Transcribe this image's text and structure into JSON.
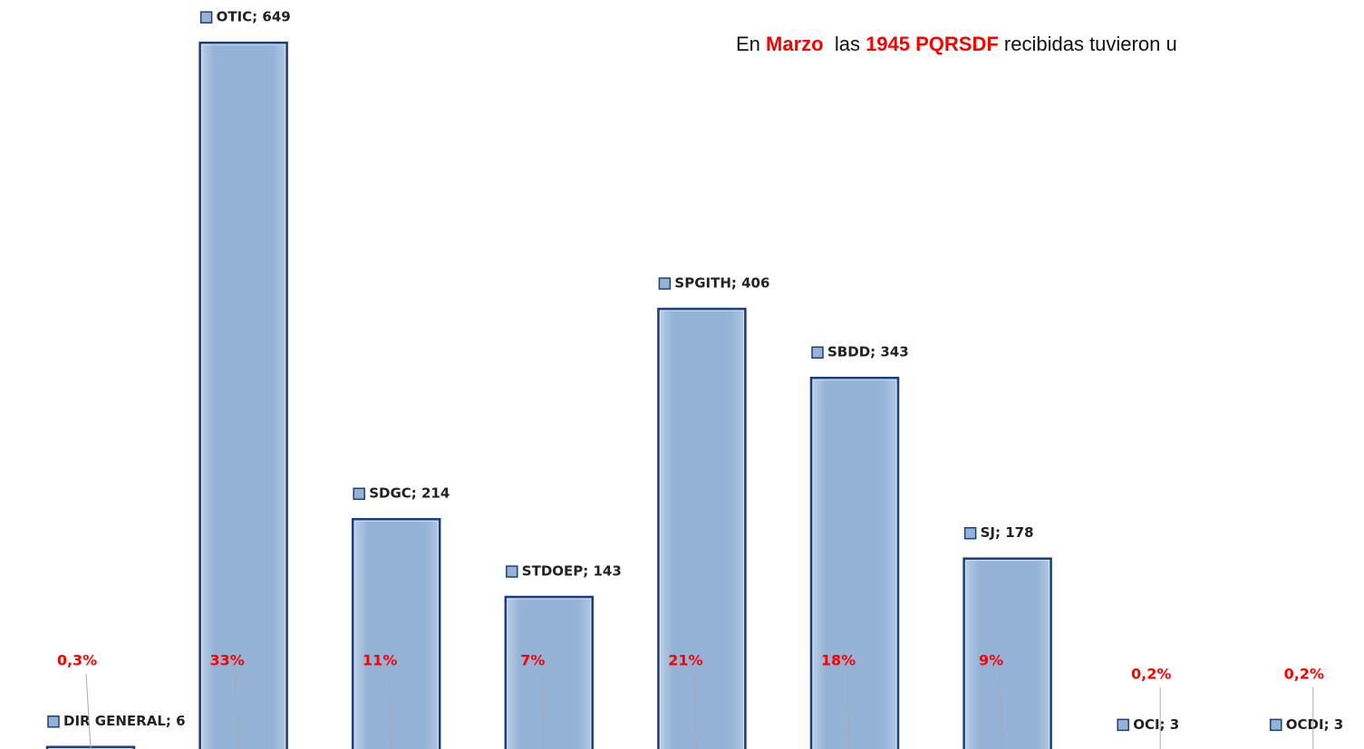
{
  "chart_data": {
    "type": "bar",
    "title_parts": [
      "En ",
      "Marzo",
      "  las ",
      "1945 PQRSDF",
      " recibidas tuvieron u"
    ],
    "categories": [
      "DIR GENERAL",
      "OTIC",
      "SDGC",
      "STDOEP",
      "SPGITH",
      "SBDD",
      "SJ",
      "OCI",
      "OCDI"
    ],
    "values": [
      6,
      649,
      214,
      143,
      406,
      343,
      178,
      3,
      3
    ],
    "value_labels": [
      "DIR GENERAL; 6",
      "OTIC; 649",
      "SDGC; 214",
      "STDOEP; 143",
      "SPGITH; 406",
      "SBDD; 343",
      "SJ; 178",
      "OCI; 3",
      "OCDI; 3"
    ],
    "percentages": {
      "values": [
        0.3,
        33,
        11,
        7,
        21,
        18,
        9,
        0.2,
        0.2
      ],
      "value_labels": [
        "0,3%",
        "33%",
        "11%",
        "7%",
        "21%",
        "18%",
        "9%",
        "0,2%",
        "0,2%"
      ],
      "color": "#ff0000"
    },
    "color": "#95b3d7",
    "edge_color": "#1f3f7a",
    "ylim": [
      0,
      688
    ]
  }
}
